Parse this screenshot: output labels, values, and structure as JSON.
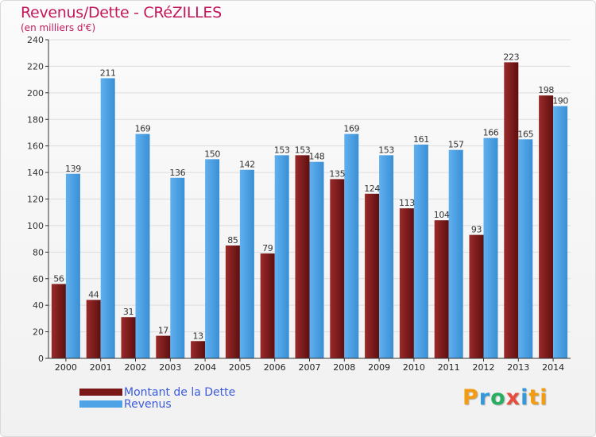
{
  "header": {
    "title": "Revenus/Dette - CRéZILLES",
    "subtitle": "(en milliers d'€)"
  },
  "legend": {
    "items": [
      {
        "label": "Montant de la Dette",
        "color": "#7b1818"
      },
      {
        "label": "Revenus",
        "color": "#4da3e6"
      }
    ]
  },
  "logo": {
    "letters": [
      "P",
      "r",
      "o",
      "x",
      "i",
      "ti"
    ]
  },
  "colors": {
    "dette": "#7b1818",
    "revenus": "#4da3e6",
    "grid": "#dddddd",
    "axis": "#333333"
  },
  "chart_data": {
    "type": "bar",
    "title": "Revenus/Dette - CRéZILLES",
    "subtitle": "(en milliers d'€)",
    "categories": [
      "2000",
      "2001",
      "2002",
      "2003",
      "2004",
      "2005",
      "2006",
      "2007",
      "2008",
      "2009",
      "2010",
      "2011",
      "2012",
      "2013",
      "2014"
    ],
    "series": [
      {
        "name": "Montant de la Dette",
        "values": [
          56,
          44,
          31,
          17,
          13,
          85,
          79,
          153,
          135,
          124,
          113,
          104,
          93,
          223,
          198
        ]
      },
      {
        "name": "Revenus",
        "values": [
          139,
          211,
          169,
          136,
          150,
          142,
          153,
          148,
          169,
          153,
          161,
          157,
          166,
          165,
          190
        ]
      }
    ],
    "ylim": [
      0,
      240
    ],
    "yticks": [
      0,
      20,
      40,
      60,
      80,
      100,
      120,
      140,
      160,
      180,
      200,
      220,
      240
    ],
    "grid": true,
    "legend_position": "bottom-left"
  }
}
